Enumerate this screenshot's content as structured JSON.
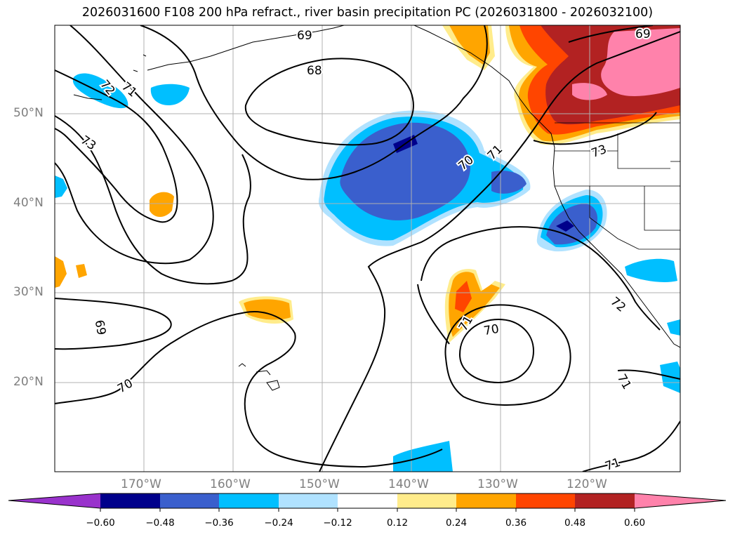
{
  "title": "2026031600 F108 200 hPa refract., river basin precipitation PC (2026031800 - 2026032100)",
  "map": {
    "lat_labels": [
      "50°N",
      "40°N",
      "30°N",
      "20°N"
    ],
    "lon_labels": [
      "170°W",
      "160°W",
      "150°W",
      "140°W",
      "130°W",
      "120°W"
    ],
    "contour_labels": [
      "69",
      "68",
      "72",
      "71",
      "73",
      "70",
      "71",
      "69",
      "73",
      "69",
      "70",
      "71",
      "70",
      "72",
      "71",
      "71"
    ]
  },
  "colorbar": {
    "ticks": [
      "−0.60",
      "−0.48",
      "−0.36",
      "−0.24",
      "−0.12",
      "0.12",
      "0.24",
      "0.36",
      "0.48",
      "0.60"
    ],
    "colors": [
      "#9932cc",
      "#00008b",
      "#3a5fcd",
      "#00bfff",
      "#b0e2ff",
      "#ffffff",
      "#ffec8b",
      "#ffa500",
      "#ff4500",
      "#b22222",
      "#ff82ab"
    ]
  }
}
